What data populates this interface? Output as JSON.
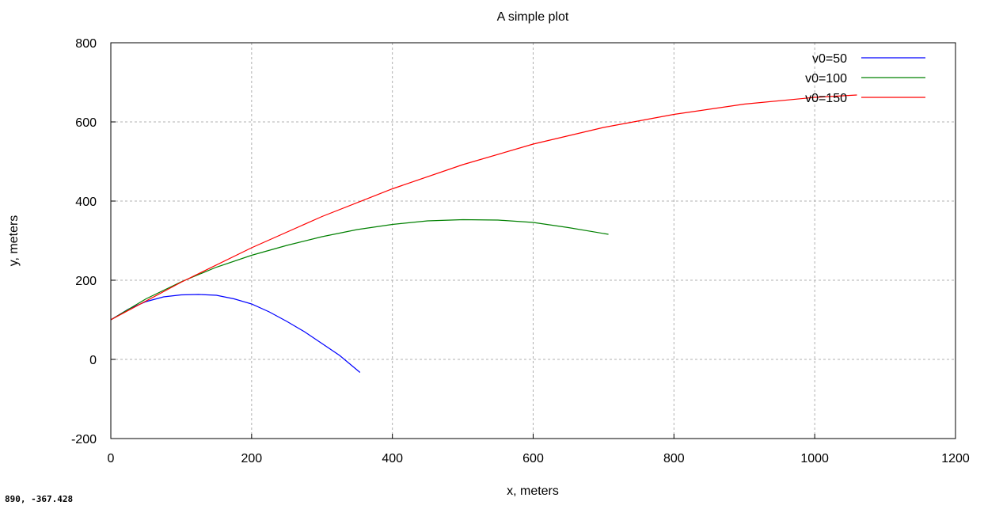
{
  "status": {
    "coords": "890, -367.428"
  },
  "chart_data": {
    "type": "line",
    "title": "A simple plot",
    "xlabel": "x, meters",
    "ylabel": "y, meters",
    "xlim": [
      0,
      1200
    ],
    "ylim": [
      -200,
      800
    ],
    "xticks": [
      0,
      200,
      400,
      600,
      800,
      1000,
      1200
    ],
    "yticks": [
      -200,
      0,
      200,
      400,
      600,
      800
    ],
    "grid": true,
    "legend_position": "top-right",
    "series": [
      {
        "name": "v0=50",
        "color": "#0000ff",
        "x": [
          0,
          25,
          50,
          75,
          100,
          125,
          150,
          175,
          200,
          225,
          250,
          275,
          300,
          325,
          354
        ],
        "y": [
          100,
          127,
          146,
          158,
          163,
          164,
          162,
          153,
          140,
          120,
          96,
          70,
          40,
          10,
          -33
        ]
      },
      {
        "name": "v0=100",
        "color": "#008000",
        "x": [
          0,
          50,
          100,
          150,
          200,
          250,
          300,
          350,
          400,
          450,
          500,
          550,
          600,
          650,
          707
        ],
        "y": [
          100,
          153,
          196,
          233,
          263,
          288,
          310,
          328,
          341,
          350,
          353,
          352,
          346,
          333,
          316
        ]
      },
      {
        "name": "v0=150",
        "color": "#ff0000",
        "x": [
          0,
          100,
          200,
          300,
          400,
          500,
          600,
          700,
          800,
          900,
          1000,
          1060
        ],
        "y": [
          100,
          195,
          282,
          361,
          431,
          492,
          544,
          586,
          619,
          645,
          662,
          668
        ]
      }
    ]
  }
}
